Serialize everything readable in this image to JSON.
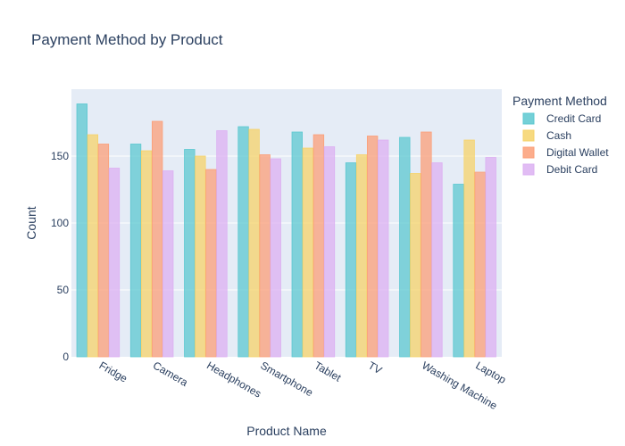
{
  "chart_data": {
    "type": "bar",
    "title": "Payment Method by Product",
    "xlabel": "Product Name",
    "ylabel": "Count",
    "ylim": [
      0,
      200
    ],
    "yticks": [
      0,
      50,
      100,
      150
    ],
    "grid": true,
    "legend_title": "Payment Method",
    "legend_position": "right",
    "categories": [
      "Fridge",
      "Camera",
      "Headphones",
      "Smartphone",
      "Tablet",
      "TV",
      "Washing Machine",
      "Laptop"
    ],
    "series": [
      {
        "name": "Credit Card",
        "color": "#5cc8d0",
        "values": [
          189,
          159,
          155,
          172,
          168,
          145,
          164,
          129
        ]
      },
      {
        "name": "Cash",
        "color": "#f6d36a",
        "values": [
          166,
          154,
          150,
          170,
          156,
          151,
          137,
          162
        ]
      },
      {
        "name": "Digital Wallet",
        "color": "#fb9f78",
        "values": [
          159,
          176,
          140,
          151,
          166,
          165,
          168,
          138
        ]
      },
      {
        "name": "Debit Card",
        "color": "#dcb0f2",
        "values": [
          141,
          139,
          169,
          148,
          157,
          162,
          145,
          149
        ]
      }
    ]
  }
}
